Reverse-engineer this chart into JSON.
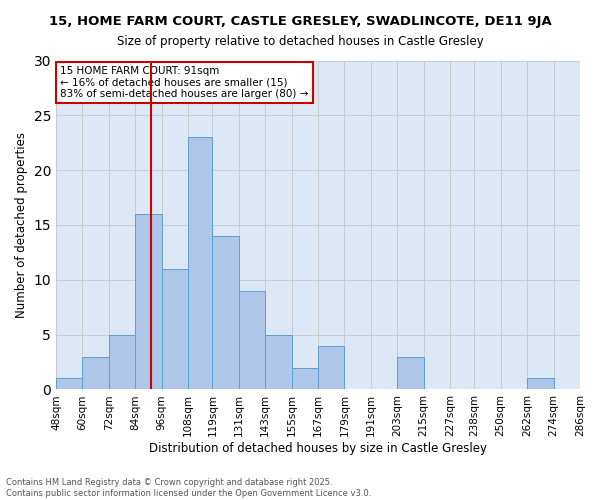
{
  "title1": "15, HOME FARM COURT, CASTLE GRESLEY, SWADLINCOTE, DE11 9JA",
  "title2": "Size of property relative to detached houses in Castle Gresley",
  "xlabel": "Distribution of detached houses by size in Castle Gresley",
  "ylabel": "Number of detached properties",
  "bin_labels": [
    "48sqm",
    "60sqm",
    "72sqm",
    "84sqm",
    "96sqm",
    "108sqm",
    "119sqm",
    "131sqm",
    "143sqm",
    "155sqm",
    "167sqm",
    "179sqm",
    "191sqm",
    "203sqm",
    "215sqm",
    "227sqm",
    "238sqm",
    "250sqm",
    "262sqm",
    "274sqm",
    "286sqm"
  ],
  "bin_values": [
    1,
    3,
    5,
    16,
    11,
    23,
    14,
    9,
    5,
    2,
    4,
    0,
    0,
    3,
    0,
    0,
    0,
    0,
    1,
    0
  ],
  "bar_color": "#aec6e8",
  "bar_edge_color": "#5a9fd4",
  "bin_edges": [
    48,
    60,
    72,
    84,
    96,
    108,
    119,
    131,
    143,
    155,
    167,
    179,
    191,
    203,
    215,
    227,
    238,
    250,
    262,
    274,
    286
  ],
  "vline_x": 91,
  "vline_color": "#cc0000",
  "annotation_text": "15 HOME FARM COURT: 91sqm\n← 16% of detached houses are smaller (15)\n83% of semi-detached houses are larger (80) →",
  "annotation_box_color": "white",
  "annotation_box_edge": "#cc0000",
  "ylim": [
    0,
    30
  ],
  "yticks": [
    0,
    5,
    10,
    15,
    20,
    25,
    30
  ],
  "grid_color": "#cccccc",
  "bg_color": "#dce8f5",
  "footer1": "Contains HM Land Registry data © Crown copyright and database right 2025.",
  "footer2": "Contains public sector information licensed under the Open Government Licence v3.0."
}
